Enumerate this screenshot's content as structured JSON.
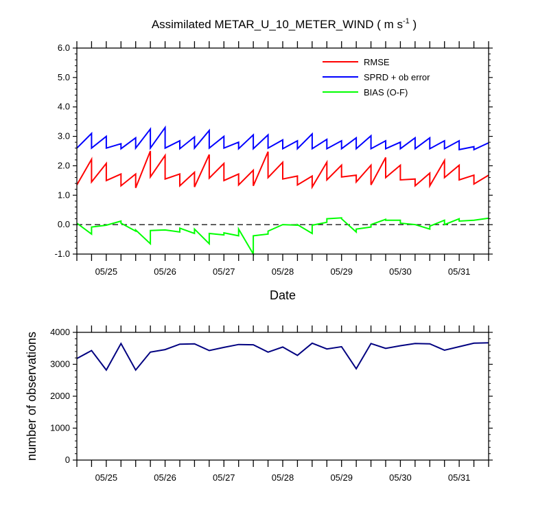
{
  "chart_data": [
    {
      "type": "line",
      "title": "Assimilated METAR_U_10_METER_WIND ( m s",
      "title_units_exponent": "-1",
      "title_units_close": " )",
      "xlabel": "Date",
      "ylabel": "",
      "xlim": [
        0,
        7
      ],
      "ylim": [
        -1.0,
        6.0
      ],
      "yticks": [
        -1.0,
        0.0,
        1.0,
        2.0,
        3.0,
        4.0,
        5.0,
        6.0
      ],
      "ytick_labels": [
        "-1.0",
        "0.0",
        "1.0",
        "2.0",
        "3.0",
        "4.0",
        "5.0",
        "6.0"
      ],
      "xtick_positions": [
        0.5,
        1.5,
        2.5,
        3.5,
        4.5,
        5.5,
        6.5
      ],
      "xtick_labels": [
        "05/25",
        "05/26",
        "05/27",
        "05/28",
        "05/29",
        "05/30",
        "05/31"
      ],
      "legend_position": "top-right",
      "zero_line": true,
      "series": [
        {
          "name": "RMSE",
          "color": "#ff0000",
          "x": [
            0,
            0.25,
            0.25,
            0.5,
            0.5,
            0.75,
            0.75,
            1.0,
            1.0,
            1.25,
            1.25,
            1.5,
            1.5,
            1.75,
            1.75,
            2.0,
            2.0,
            2.25,
            2.25,
            2.5,
            2.5,
            2.75,
            2.75,
            3.0,
            3.0,
            3.25,
            3.25,
            3.5,
            3.5,
            3.75,
            3.75,
            4.0,
            4.0,
            4.25,
            4.25,
            4.5,
            4.5,
            4.75,
            4.75,
            5.0,
            5.0,
            5.25,
            5.25,
            5.5,
            5.5,
            5.75,
            5.75,
            6.0,
            6.0,
            6.25,
            6.25,
            6.5,
            6.5,
            6.75,
            6.75,
            7.0
          ],
          "values": [
            1.35,
            2.22,
            1.45,
            2.08,
            1.5,
            1.72,
            1.32,
            1.72,
            1.25,
            2.5,
            1.62,
            2.35,
            1.55,
            1.72,
            1.32,
            1.78,
            1.28,
            2.38,
            1.58,
            2.08,
            1.5,
            1.72,
            1.35,
            1.85,
            1.32,
            2.48,
            1.6,
            2.12,
            1.55,
            1.65,
            1.35,
            1.65,
            1.28,
            2.12,
            1.52,
            2.02,
            1.62,
            1.68,
            1.45,
            2.02,
            1.35,
            2.28,
            1.6,
            2.02,
            1.52,
            1.55,
            1.32,
            1.75,
            1.32,
            2.18,
            1.6,
            2.02,
            1.52,
            1.68,
            1.38,
            1.68
          ]
        },
        {
          "name": "SPRD + ob error",
          "color": "#0000ff",
          "x": [
            0,
            0.25,
            0.25,
            0.5,
            0.5,
            0.75,
            0.75,
            1.0,
            1.0,
            1.25,
            1.25,
            1.5,
            1.5,
            1.75,
            1.75,
            2.0,
            2.0,
            2.25,
            2.25,
            2.5,
            2.5,
            2.75,
            2.75,
            3.0,
            3.0,
            3.25,
            3.25,
            3.5,
            3.5,
            3.75,
            3.75,
            4.0,
            4.0,
            4.25,
            4.25,
            4.5,
            4.5,
            4.75,
            4.75,
            5.0,
            5.0,
            5.25,
            5.25,
            5.5,
            5.5,
            5.75,
            5.75,
            6.0,
            6.0,
            6.25,
            6.25,
            6.5,
            6.5,
            6.75,
            6.75,
            7.0
          ],
          "values": [
            2.6,
            3.1,
            2.6,
            3.0,
            2.6,
            2.75,
            2.58,
            2.95,
            2.6,
            3.25,
            2.6,
            3.3,
            2.6,
            2.85,
            2.58,
            2.98,
            2.6,
            3.2,
            2.6,
            3.0,
            2.6,
            2.8,
            2.58,
            3.05,
            2.58,
            3.05,
            2.6,
            2.88,
            2.58,
            2.85,
            2.58,
            3.08,
            2.58,
            2.9,
            2.58,
            2.85,
            2.58,
            2.95,
            2.58,
            3.02,
            2.58,
            2.85,
            2.58,
            2.8,
            2.58,
            2.95,
            2.58,
            2.95,
            2.58,
            2.85,
            2.58,
            2.85,
            2.55,
            2.65,
            2.55,
            2.78
          ]
        },
        {
          "name": "BIAS (O-F)",
          "color": "#00ff00",
          "x": [
            0,
            0.25,
            0.25,
            0.5,
            0.5,
            0.75,
            0.75,
            1.0,
            1.0,
            1.25,
            1.25,
            1.5,
            1.5,
            1.75,
            1.75,
            2.0,
            2.0,
            2.25,
            2.25,
            2.5,
            2.5,
            2.75,
            2.75,
            3.0,
            3.0,
            3.25,
            3.25,
            3.5,
            3.5,
            3.75,
            3.75,
            4.0,
            4.0,
            4.25,
            4.25,
            4.5,
            4.5,
            4.75,
            4.75,
            5.0,
            5.0,
            5.25,
            5.25,
            5.5,
            5.5,
            5.75,
            5.75,
            6.0,
            6.0,
            6.25,
            6.25,
            6.5,
            6.5,
            6.75,
            6.75,
            7.0
          ],
          "values": [
            0.05,
            -0.32,
            -0.08,
            -0.02,
            -0.02,
            0.12,
            0.05,
            -0.22,
            -0.18,
            -0.65,
            -0.2,
            -0.18,
            -0.18,
            -0.25,
            -0.12,
            -0.3,
            -0.15,
            -0.65,
            -0.3,
            -0.35,
            -0.28,
            -0.38,
            -0.15,
            -1.0,
            -0.38,
            -0.32,
            -0.22,
            0.0,
            0.0,
            -0.02,
            0.0,
            -0.3,
            -0.02,
            0.08,
            0.2,
            0.23,
            0.2,
            -0.25,
            -0.15,
            -0.08,
            0.0,
            0.18,
            0.15,
            0.15,
            0.05,
            0.0,
            0.0,
            -0.15,
            -0.05,
            0.15,
            0.0,
            0.2,
            0.12,
            0.15,
            0.15,
            0.22
          ]
        }
      ]
    },
    {
      "type": "line",
      "title": "",
      "xlabel": "",
      "ylabel": "number of observations",
      "xlim": [
        0,
        7
      ],
      "ylim": [
        0,
        4000
      ],
      "yticks": [
        0,
        1000,
        2000,
        3000,
        4000
      ],
      "ytick_labels": [
        "0",
        "1000",
        "2000",
        "3000",
        "4000"
      ],
      "xtick_positions": [
        0.5,
        1.5,
        2.5,
        3.5,
        4.5,
        5.5,
        6.5
      ],
      "xtick_labels": [
        "05/25",
        "05/26",
        "05/27",
        "05/28",
        "05/29",
        "05/30",
        "05/31"
      ],
      "series": [
        {
          "name": "number of observations",
          "color": "#000080",
          "x": [
            0,
            0.25,
            0.5,
            0.75,
            1.0,
            1.25,
            1.5,
            1.75,
            2.0,
            2.25,
            2.5,
            2.75,
            3.0,
            3.25,
            3.5,
            3.75,
            4.0,
            4.25,
            4.5,
            4.75,
            5.0,
            5.25,
            5.5,
            5.75,
            6.0,
            6.25,
            6.5,
            6.75,
            7.0
          ],
          "values": [
            3180,
            3430,
            2820,
            3650,
            2820,
            3380,
            3460,
            3630,
            3640,
            3430,
            3530,
            3620,
            3610,
            3380,
            3540,
            3280,
            3660,
            3480,
            3550,
            2860,
            3650,
            3500,
            3580,
            3650,
            3640,
            3440,
            3550,
            3660,
            3670
          ]
        }
      ]
    }
  ]
}
